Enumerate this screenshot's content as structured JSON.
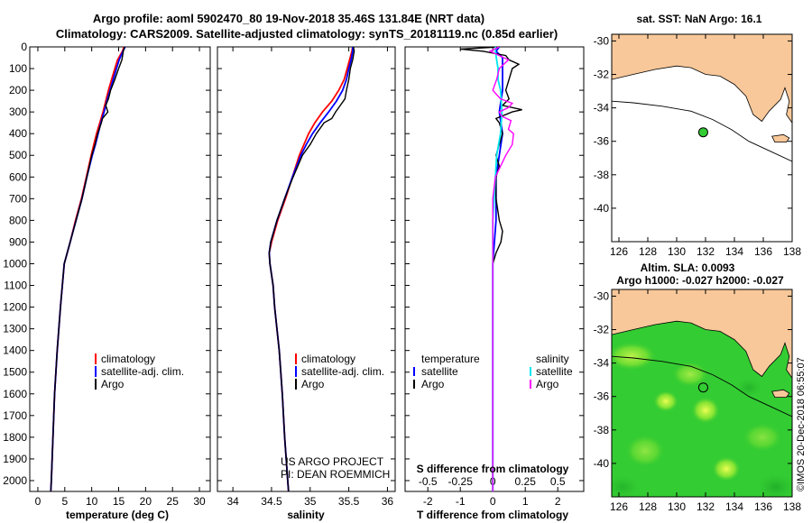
{
  "figure": {
    "title_line1": "Argo profile: aoml 5902470_80 19-Nov-2018 35.46S 131.84E (NRT data)",
    "title_line2": "Climatology: CARS2009. Satellite-adjusted climatology: synTS_20181119.nc (0.85d earlier)",
    "credit_line1": "US ARGO PROJECT",
    "credit_line2": "PI: DEAN ROEMMICH",
    "copyright": "©IMOS 20-Dec-2018 06:55:07"
  },
  "colors": {
    "climatology": "#ff0000",
    "satellite": "#0000ff",
    "argo": "#000000",
    "salinity_satellite": "#00e5ee",
    "salinity_argo": "#ff00ff",
    "land": "#f8c89a",
    "ocean_map": "#ffffff",
    "sla_field": "#33cc33",
    "sla_highlight": "#ccff44",
    "float_marker": "#33cc33"
  },
  "chart_data": [
    {
      "type": "line",
      "id": "temperature",
      "xlabel": "temperature (deg C)",
      "ylabel": "",
      "xlim": [
        -1.5,
        32
      ],
      "ylim": [
        0,
        2050
      ],
      "y_inverted": true,
      "xticks": [
        0,
        5,
        10,
        15,
        20,
        25,
        30
      ],
      "xtick_labels": [
        "0",
        "5",
        "10",
        "15",
        "20",
        "25",
        "30"
      ],
      "yticks": [
        0,
        100,
        200,
        300,
        400,
        500,
        600,
        700,
        800,
        900,
        1000,
        1100,
        1200,
        1300,
        1400,
        1500,
        1600,
        1700,
        1800,
        1900,
        2000
      ],
      "ytick_labels": [
        "0",
        "100",
        "200",
        "300",
        "400",
        "500",
        "600",
        "700",
        "800",
        "900",
        "1000",
        "1100",
        "1200",
        "1300",
        "1400",
        "1500",
        "1600",
        "1700",
        "1800",
        "1900",
        "2000"
      ],
      "legend": [
        "climatology",
        "satellite-adj. clim.",
        "Argo"
      ],
      "series": [
        {
          "name": "climatology",
          "color": "#ff0000",
          "depth": [
            0,
            20,
            60,
            100,
            150,
            200,
            250,
            300,
            350,
            400,
            450,
            500,
            600,
            700,
            800,
            900,
            1000,
            1200,
            1400,
            1600,
            1800,
            2000,
            2050
          ],
          "values": [
            16.0,
            15.7,
            14.8,
            14.3,
            13.7,
            13.1,
            12.6,
            12.1,
            11.5,
            10.9,
            10.4,
            9.9,
            9.0,
            8.1,
            7.0,
            6.0,
            4.9,
            4.2,
            3.6,
            3.1,
            2.8,
            2.5,
            2.4
          ]
        },
        {
          "name": "satellite-adj. clim.",
          "color": "#0000ff",
          "depth": [
            0,
            20,
            60,
            100,
            150,
            200,
            250,
            300,
            350,
            400,
            450,
            500,
            600,
            700,
            800,
            900,
            1000,
            1200,
            1400,
            1600,
            1800,
            2000,
            2050
          ],
          "values": [
            16.2,
            15.8,
            15.1,
            14.6,
            14.0,
            13.4,
            12.8,
            12.3,
            11.7,
            11.2,
            10.7,
            10.1,
            9.1,
            8.2,
            7.1,
            6.0,
            4.9,
            4.2,
            3.6,
            3.1,
            2.8,
            2.5,
            2.4
          ]
        },
        {
          "name": "Argo",
          "color": "#000000",
          "depth": [
            0,
            15,
            30,
            60,
            100,
            150,
            200,
            240,
            270,
            300,
            330,
            350,
            400,
            450,
            500,
            600,
            700,
            800,
            900,
            1000,
            1200,
            1400,
            1600,
            1800,
            2000,
            2050
          ],
          "values": [
            16.1,
            15.9,
            15.8,
            15.6,
            15.0,
            14.3,
            13.5,
            13.1,
            12.6,
            13.0,
            12.0,
            11.8,
            11.1,
            10.6,
            10.0,
            9.1,
            8.2,
            7.1,
            6.0,
            4.9,
            4.2,
            3.6,
            3.1,
            2.8,
            2.5,
            2.4
          ]
        }
      ]
    },
    {
      "type": "line",
      "id": "salinity",
      "xlabel": "salinity",
      "ylabel": "",
      "xlim": [
        33.8,
        36.1
      ],
      "ylim": [
        0,
        2050
      ],
      "y_inverted": true,
      "xticks": [
        34,
        34.5,
        35,
        35.5,
        36
      ],
      "xtick_labels": [
        "34",
        "34.5",
        "35",
        "35.5",
        "36"
      ],
      "legend": [
        "climatology",
        "satellite-adj. clim.",
        "Argo"
      ],
      "series": [
        {
          "name": "climatology",
          "color": "#ff0000",
          "depth": [
            0,
            20,
            60,
            100,
            150,
            200,
            250,
            300,
            350,
            400,
            450,
            500,
            600,
            700,
            800,
            900,
            950,
            1000,
            1100,
            1200,
            1400,
            1600,
            1800,
            2000,
            2050
          ],
          "values": [
            35.55,
            35.54,
            35.51,
            35.48,
            35.44,
            35.37,
            35.28,
            35.16,
            35.06,
            34.98,
            34.92,
            34.86,
            34.77,
            34.68,
            34.58,
            34.5,
            34.47,
            34.48,
            34.52,
            34.54,
            34.6,
            34.64,
            34.67,
            34.71,
            34.72
          ]
        },
        {
          "name": "satellite-adj. clim.",
          "color": "#0000ff",
          "depth": [
            0,
            20,
            60,
            100,
            150,
            200,
            250,
            300,
            350,
            400,
            450,
            500,
            600,
            700,
            800,
            900,
            950,
            1000,
            1100,
            1200,
            1400,
            1600,
            1800,
            2000,
            2050
          ],
          "values": [
            35.55,
            35.55,
            35.53,
            35.5,
            35.47,
            35.42,
            35.34,
            35.24,
            35.13,
            35.03,
            34.95,
            34.88,
            34.77,
            34.67,
            34.57,
            34.49,
            34.47,
            34.48,
            34.52,
            34.54,
            34.6,
            34.64,
            34.67,
            34.71,
            34.72
          ]
        },
        {
          "name": "Argo",
          "color": "#000000",
          "depth": [
            0,
            20,
            60,
            100,
            150,
            200,
            240,
            270,
            300,
            330,
            350,
            400,
            450,
            500,
            600,
            700,
            800,
            900,
            950,
            1000,
            1100,
            1200,
            1400,
            1600,
            1800,
            2000,
            2050
          ],
          "values": [
            35.56,
            35.57,
            35.55,
            35.52,
            35.5,
            35.47,
            35.45,
            35.39,
            35.33,
            35.28,
            35.18,
            35.08,
            35.0,
            34.9,
            34.78,
            34.67,
            34.57,
            34.49,
            34.47,
            34.48,
            34.52,
            34.54,
            34.6,
            34.64,
            34.67,
            34.71,
            34.72
          ]
        }
      ]
    },
    {
      "type": "line",
      "id": "difference",
      "xlabel": "T difference from climatology",
      "xlabel_top": "S difference from climatology",
      "xlim": [
        -2.7,
        2.8
      ],
      "ylim": [
        0,
        2050
      ],
      "y_inverted": true,
      "xticks": [
        -2,
        -1,
        0,
        1,
        2
      ],
      "xtick_labels": [
        "-2",
        "-1",
        "0",
        "1",
        "2"
      ],
      "s_ticks": [
        -0.5,
        -0.25,
        0,
        0.25,
        0.5
      ],
      "s_tick_labels": [
        "-0.5",
        "-0.25",
        "0",
        "0.25",
        "0.5"
      ],
      "s_scale": 0.25,
      "legend_temperature_heading": "temperature",
      "legend_salinity_heading": "salinity",
      "legend_temperature": [
        "satellite",
        "Argo"
      ],
      "legend_salinity": [
        "satellite",
        "Argo"
      ],
      "series": [
        {
          "name": "T satellite",
          "color": "#0000ff",
          "unit": "T",
          "depth": [
            0,
            20,
            50,
            100,
            150,
            200,
            300,
            400,
            500,
            600,
            700,
            800,
            900,
            1000,
            1200,
            1400,
            1600,
            1800,
            2000,
            2050
          ],
          "values": [
            0.2,
            0.1,
            0.3,
            0.3,
            0.3,
            0.3,
            0.2,
            0.3,
            0.2,
            0.1,
            0.1,
            0.1,
            0.05,
            0.0,
            0.0,
            0.0,
            0.0,
            0.0,
            0.0,
            0.0
          ]
        },
        {
          "name": "T Argo",
          "color": "#000000",
          "unit": "T",
          "depth": [
            0,
            10,
            20,
            40,
            60,
            80,
            100,
            150,
            200,
            240,
            270,
            290,
            300,
            330,
            350,
            400,
            450,
            500,
            550,
            600,
            700,
            800,
            850,
            900,
            950,
            1000,
            1200,
            1400,
            1600,
            1800,
            2000,
            2050
          ],
          "values": [
            0.2,
            -1.0,
            -0.3,
            0.4,
            0.5,
            0.8,
            0.6,
            0.5,
            0.4,
            0.5,
            0.3,
            0.9,
            0.6,
            0.1,
            0.2,
            0.3,
            0.2,
            0.1,
            0.2,
            0.1,
            0.1,
            0.2,
            0.3,
            0.25,
            0.1,
            0.0,
            0.0,
            0.0,
            0.0,
            0.0,
            0.0,
            0.0
          ]
        },
        {
          "name": "S satellite",
          "color": "#00e5ee",
          "unit": "S",
          "depth": [
            0,
            20,
            60,
            100,
            150,
            200,
            300,
            400,
            500,
            600,
            700,
            800,
            900,
            1000,
            1200,
            1400,
            1600,
            1800,
            2000,
            2050
          ],
          "values": [
            0.02,
            0.02,
            0.03,
            0.04,
            0.04,
            0.06,
            0.07,
            0.06,
            0.03,
            0.02,
            0.01,
            0.0,
            0.0,
            0.0,
            0.0,
            0.0,
            0.0,
            0.0,
            0.0,
            0.0
          ]
        },
        {
          "name": "S Argo",
          "color": "#ff00ff",
          "unit": "S",
          "depth": [
            0,
            20,
            40,
            60,
            100,
            150,
            200,
            240,
            260,
            280,
            300,
            320,
            340,
            380,
            400,
            450,
            500,
            550,
            600,
            700,
            800,
            900,
            1000,
            1200,
            1400,
            1600,
            1800,
            2000,
            2050
          ],
          "values": [
            0.05,
            -0.02,
            0.05,
            0.12,
            0.05,
            0.03,
            0.0,
            0.06,
            0.15,
            0.12,
            0.05,
            0.07,
            0.14,
            0.12,
            0.16,
            0.15,
            0.1,
            0.06,
            0.02,
            0.0,
            0.0,
            0.0,
            0.0,
            0.0,
            0.0,
            0.0,
            0.0,
            0.0,
            0.0
          ]
        }
      ]
    },
    {
      "type": "map",
      "id": "sst-map",
      "title": "sat. SST: NaN Argo: 16.1",
      "xlim": [
        125.5,
        138
      ],
      "ylim": [
        -42,
        -29.6
      ],
      "xticks": [
        126,
        128,
        130,
        132,
        134,
        136,
        138
      ],
      "xtick_labels": [
        "126",
        "128",
        "130",
        "132",
        "134",
        "136",
        "138"
      ],
      "yticks": [
        -30,
        -32,
        -34,
        -36,
        -38,
        -40
      ],
      "ytick_labels": [
        "-30",
        "-32",
        "-34",
        "-36",
        "-38",
        "-40"
      ],
      "float_position": [
        131.84,
        -35.46
      ],
      "coast": [
        [
          125.5,
          -32.3
        ],
        [
          127,
          -32.0
        ],
        [
          128.5,
          -31.7
        ],
        [
          130,
          -31.5
        ],
        [
          131,
          -31.6
        ],
        [
          132,
          -32.0
        ],
        [
          133,
          -32.1
        ],
        [
          134,
          -32.6
        ],
        [
          134.8,
          -33.3
        ],
        [
          135.3,
          -34.4
        ],
        [
          135.9,
          -34.8
        ],
        [
          136.4,
          -34.2
        ],
        [
          137.2,
          -33.5
        ],
        [
          137.5,
          -32.8
        ],
        [
          137.8,
          -33.6
        ],
        [
          137.6,
          -34.4
        ],
        [
          138,
          -34.9
        ],
        [
          138,
          -29.6
        ],
        [
          125.5,
          -29.6
        ]
      ],
      "island": [
        [
          136.6,
          -35.7
        ],
        [
          137.4,
          -35.6
        ],
        [
          137.8,
          -35.8
        ],
        [
          137.6,
          -36.05
        ],
        [
          136.8,
          -36.05
        ]
      ],
      "isobath": [
        [
          125.5,
          -33.6
        ],
        [
          127,
          -33.7
        ],
        [
          129,
          -33.9
        ],
        [
          131,
          -34.2
        ],
        [
          132.5,
          -34.7
        ],
        [
          133.8,
          -35.3
        ],
        [
          135,
          -36.0
        ],
        [
          136.5,
          -36.6
        ],
        [
          138,
          -37.2
        ]
      ]
    },
    {
      "type": "map",
      "id": "sla-map",
      "title": "Altim. SLA: 0.0093",
      "subtitle": "Argo h1000: -0.027 h2000: -0.027",
      "xlim": [
        125.5,
        138
      ],
      "ylim": [
        -42,
        -29.6
      ],
      "xticks": [
        126,
        128,
        130,
        132,
        134,
        136,
        138
      ],
      "xtick_labels": [
        "126",
        "128",
        "130",
        "132",
        "134",
        "136",
        "138"
      ],
      "yticks": [
        -30,
        -32,
        -34,
        -36,
        -38,
        -40
      ],
      "ytick_labels": [
        "-30",
        "-32",
        "-34",
        "-36",
        "-38",
        "-40"
      ],
      "float_position": [
        131.84,
        -35.46
      ]
    }
  ]
}
